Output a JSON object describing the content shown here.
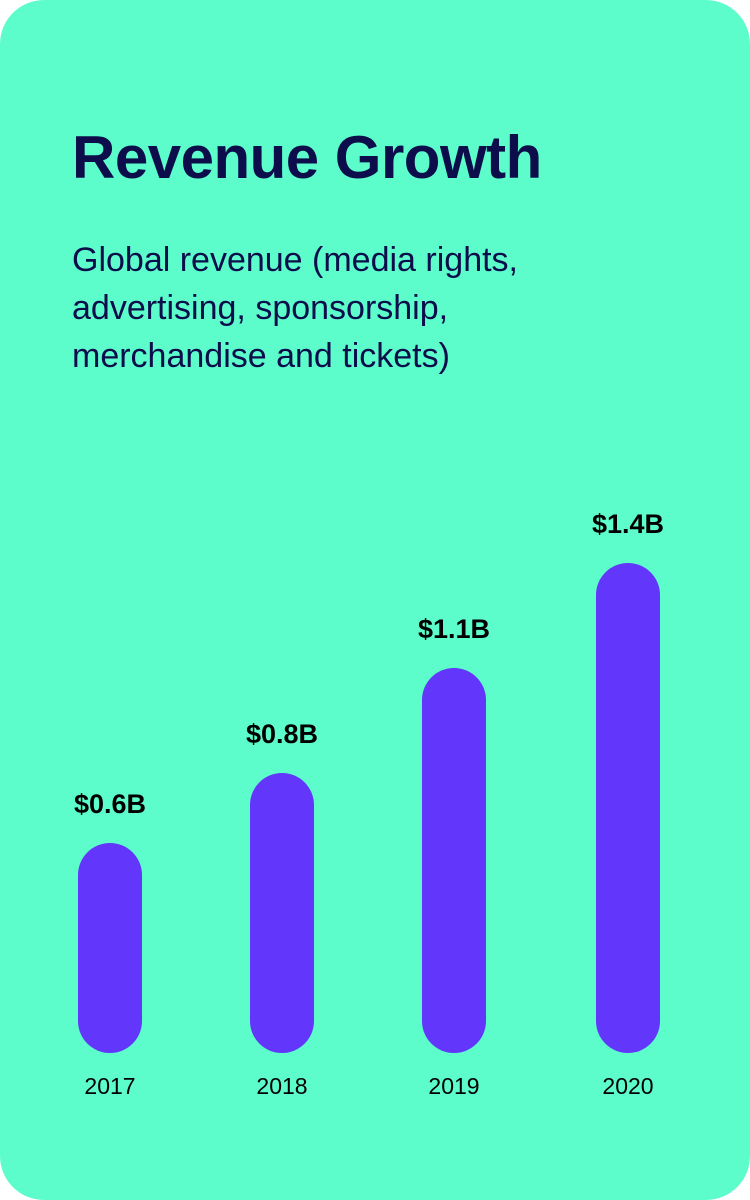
{
  "colors": {
    "background": "#5cfdca",
    "text": "#0c0d4a",
    "bar": "#6236fb",
    "label": "#000000"
  },
  "header": {
    "title": "Revenue Growth",
    "subtitle": "Global revenue (media rights, advertising, sponsorship, merchandise and tickets)"
  },
  "chart_data": {
    "type": "bar",
    "categories": [
      "2017",
      "2018",
      "2019",
      "2020"
    ],
    "values": [
      0.6,
      0.8,
      1.1,
      1.4
    ],
    "data_labels": [
      "$0.6B",
      "$0.8B",
      "$1.1B",
      "$1.4B"
    ],
    "unit": "B",
    "title": "Revenue Growth",
    "subtitle": "Global revenue (media rights, advertising, sponsorship, merchandise and tickets)",
    "ylim": [
      0,
      1.4
    ],
    "grid": false,
    "legend": "none"
  }
}
